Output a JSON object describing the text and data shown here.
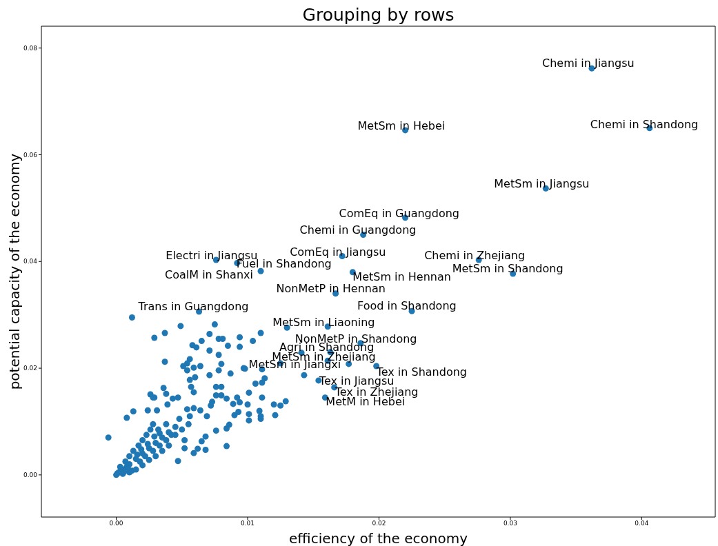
{
  "chart_data": {
    "type": "scatter",
    "title": "Grouping by rows",
    "xlabel": "efficiency of the economy",
    "ylabel": "potential capacity of the economy",
    "marker": "circle",
    "xlim": [
      -0.0057,
      0.0456
    ],
    "ylim": [
      -0.0079,
      0.0841
    ],
    "xticks": [
      {
        "value": 0,
        "label": "0.00"
      },
      {
        "value": 0.01,
        "label": "0.01"
      },
      {
        "value": 0.02,
        "label": "0.02"
      },
      {
        "value": 0.03,
        "label": "0.03"
      },
      {
        "value": 0.04,
        "label": "0.04"
      }
    ],
    "yticks": [
      {
        "value": 0,
        "label": "0.00"
      },
      {
        "value": 0.02,
        "label": "0.02"
      },
      {
        "value": 0.04,
        "label": "0.04"
      },
      {
        "value": 0.06,
        "label": "0.06"
      },
      {
        "value": 0.08,
        "label": "0.08"
      }
    ],
    "series": [
      {
        "color": "#1f77b4",
        "x": [
          0.0362,
          0.0406,
          0.022,
          0.0327,
          0.022,
          0.0188,
          0.0172,
          0.0276,
          0.0302,
          0.0076,
          0.0092,
          0.011,
          0.018,
          0.0167,
          0.0225,
          0.0063,
          0.0161,
          0.0186,
          0.0163,
          0.0161,
          0.0125,
          0.0198,
          0.0154,
          0.0166,
          0.0159,
          0.0012,
          0.0049,
          0.0075,
          0.0037,
          0.0029,
          0.0071,
          0.0078,
          0.0081,
          0.0094,
          0.011,
          0.0104,
          0.0065,
          0.0058,
          0.0061,
          0.0085,
          0.0094,
          0.0071,
          0.0078,
          0.0037,
          0.0056,
          0.0054,
          0.0051,
          0.0064,
          0.008,
          0.0054,
          0.0059,
          0.0078,
          0.0087,
          0.0097,
          0.0111,
          0.006,
          0.0071,
          0.0056,
          0.0113,
          0.0111,
          0.0106,
          0.0076,
          0.008,
          0.0057,
          0.0036,
          0.0101,
          0.0038,
          0.0059,
          0.0026,
          0.0029,
          0.0076,
          0.008,
          0.0092,
          0.0111,
          0.0073,
          0.0084,
          0.0094,
          0.01,
          0.012,
          0.0125,
          0.0129,
          0.0089,
          0.0109,
          0.0121,
          0.0101,
          0.011,
          0.011,
          0.0101,
          0.009,
          0.0093,
          0.0086,
          0.0084,
          0.0084,
          0.0068,
          0.0062,
          0.0059,
          -0.0006,
          0.0047,
          0.0052,
          0.0076,
          0.0068,
          0.0065,
          0.0069,
          0.0064,
          0.0072,
          0.0059,
          0.0056,
          0.0054,
          0.0047,
          0.0043,
          0.0013,
          0.0008,
          0.0024,
          0.0031,
          0.0039,
          0.0028,
          0.0143,
          0.0098,
          0.0141,
          0.0177,
          0.013,
          0.0002,
          0.0005,
          0.0008,
          0.001,
          0.0012,
          0.0015,
          0.0018,
          0.002,
          0.0022,
          0.0025,
          0.0028,
          0.003,
          0.0033,
          0.0035,
          0.0038,
          0.004,
          0.0042,
          0.0045,
          0.0005,
          0.001,
          0.0015,
          0.002,
          0.0025,
          0.003,
          0.0035,
          0.0003,
          0.0007,
          0.001,
          0.0013,
          0.0017,
          0.002,
          0.0023,
          0.0026,
          0.0028,
          0.0032,
          0.0038,
          0.0048,
          0.005,
          0.0055,
          0.0045,
          0.004,
          0.0052,
          0.0,
          0.0001,
          0.0006,
          0.0009,
          0.0016,
          0.0019,
          0.0024,
          0.0029,
          0.0033
        ],
        "values": [
          0.0762,
          0.065,
          0.0646,
          0.0537,
          0.0482,
          0.045,
          0.041,
          0.0403,
          0.0377,
          0.0403,
          0.0397,
          0.0382,
          0.038,
          0.034,
          0.0307,
          0.0306,
          0.0278,
          0.0247,
          0.023,
          0.0214,
          0.0209,
          0.0204,
          0.0177,
          0.0164,
          0.0145,
          0.0295,
          0.0279,
          0.0282,
          0.0266,
          0.0257,
          0.0264,
          0.0255,
          0.0255,
          0.0258,
          0.0266,
          0.0251,
          0.0251,
          0.0243,
          0.0239,
          0.0242,
          0.024,
          0.0233,
          0.0225,
          0.0212,
          0.0217,
          0.0209,
          0.0204,
          0.0204,
          0.0208,
          0.0196,
          0.0201,
          0.0196,
          0.019,
          0.02,
          0.0198,
          0.0183,
          0.0187,
          0.0178,
          0.0181,
          0.0173,
          0.0171,
          0.0165,
          0.0165,
          0.0165,
          0.0163,
          0.0154,
          0.0152,
          0.0155,
          0.0151,
          0.0145,
          0.0149,
          0.0149,
          0.0145,
          0.0145,
          0.0137,
          0.0143,
          0.0136,
          0.0132,
          0.0132,
          0.013,
          0.0138,
          0.0133,
          0.012,
          0.0112,
          0.0114,
          0.011,
          0.0105,
          0.0102,
          0.0112,
          0.0118,
          0.0094,
          0.0087,
          0.0054,
          0.0047,
          0.0049,
          0.0041,
          0.007,
          0.0026,
          0.005,
          0.0083,
          0.0072,
          0.0063,
          0.011,
          0.0121,
          0.013,
          0.0125,
          0.011,
          0.0123,
          0.0145,
          0.0143,
          0.0119,
          0.0107,
          0.0121,
          0.0121,
          0.0132,
          0.0145,
          0.0187,
          0.0199,
          0.0229,
          0.0208,
          0.0276,
          0.0005,
          0.001,
          0.0015,
          0.002,
          0.0008,
          0.003,
          0.0025,
          0.004,
          0.0035,
          0.005,
          0.0045,
          0.006,
          0.0055,
          0.007,
          0.0065,
          0.008,
          0.0075,
          0.009,
          0.0002,
          0.0005,
          0.001,
          0.0018,
          0.0028,
          0.0035,
          0.0045,
          0.0015,
          0.0025,
          0.0035,
          0.0045,
          0.0055,
          0.0065,
          0.0075,
          0.0085,
          0.0095,
          0.0085,
          0.0095,
          0.0105,
          0.0085,
          0.0095,
          0.0075,
          0.0055,
          0.0065,
          0.0,
          0.0003,
          0.0006,
          0.0012,
          0.0038,
          0.0048,
          0.0058,
          0.0072,
          0.0078
        ]
      }
    ],
    "annotations": [
      {
        "text": "Chemi in Jiangsu",
        "x": 0.0362,
        "y": 0.0762
      },
      {
        "text": "Chemi in Shandong",
        "x": 0.0406,
        "y": 0.065
      },
      {
        "text": "MetSm in Hebei",
        "x": 0.022,
        "y": 0.0646
      },
      {
        "text": "MetSm in Jiangsu",
        "x": 0.0327,
        "y": 0.0537
      },
      {
        "text": "ComEq in Guangdong",
        "x": 0.022,
        "y": 0.0482
      },
      {
        "text": "Chemi in Guangdong",
        "x": 0.0188,
        "y": 0.045
      },
      {
        "text": "ComEq in Jiangsu",
        "x": 0.0172,
        "y": 0.041
      },
      {
        "text": "Chemi in Zhejiang",
        "x": 0.0276,
        "y": 0.0403
      },
      {
        "text": "MetSm in Shandong",
        "x": 0.0302,
        "y": 0.0377
      },
      {
        "text": "Electri in Jiangsu",
        "x": 0.0076,
        "y": 0.0403
      },
      {
        "text": "Fuel in Shandong",
        "x": 0.0092,
        "y": 0.0397
      },
      {
        "text": "CoalM in Shanxi",
        "x": 0.011,
        "y": 0.0382
      },
      {
        "text": "MetSm in Hennan",
        "x": 0.018,
        "y": 0.038
      },
      {
        "text": "NonMetP in Hennan",
        "x": 0.0167,
        "y": 0.034
      },
      {
        "text": "Food in Shandong",
        "x": 0.0225,
        "y": 0.0307
      },
      {
        "text": "Trans in Guangdong",
        "x": 0.0063,
        "y": 0.0306
      },
      {
        "text": "MetSm in Liaoning",
        "x": 0.0161,
        "y": 0.0278
      },
      {
        "text": "NonMetP in Shandong",
        "x": 0.0186,
        "y": 0.0247
      },
      {
        "text": "Agri in Shandong",
        "x": 0.0163,
        "y": 0.023
      },
      {
        "text": "MetSm in Zhejiang",
        "x": 0.0161,
        "y": 0.0214
      },
      {
        "text": "MetSm in Jiangxi",
        "x": 0.0125,
        "y": 0.0209
      },
      {
        "text": "Tex in Shandong",
        "x": 0.0198,
        "y": 0.0204
      },
      {
        "text": "Tex in Jiangsu",
        "x": 0.0154,
        "y": 0.0177
      },
      {
        "text": "Tex in Zhejiang",
        "x": 0.0166,
        "y": 0.0164
      },
      {
        "text": "MetM in Hebei",
        "x": 0.0159,
        "y": 0.0145
      }
    ]
  }
}
